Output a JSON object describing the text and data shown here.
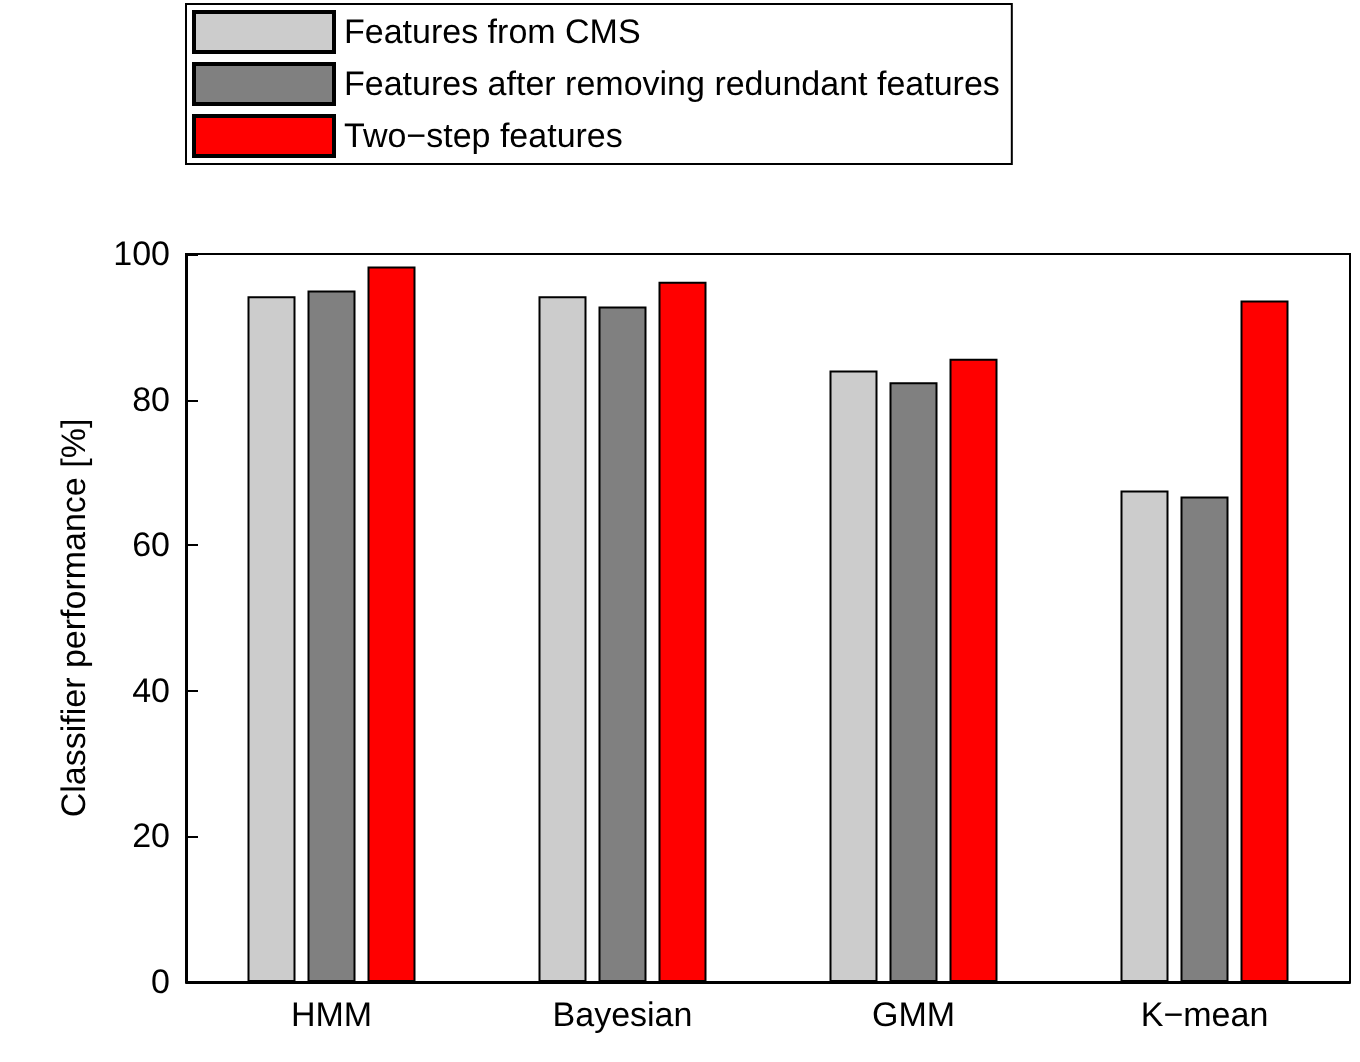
{
  "chart_data": {
    "type": "bar",
    "ylabel": "Classifier performance [%]",
    "categories": [
      "HMM",
      "Bayesian",
      "GMM",
      "K−mean"
    ],
    "series": [
      {
        "name": "Features from CMS",
        "color": "#cccccc",
        "values": [
          94.2,
          94.2,
          84,
          67.5
        ]
      },
      {
        "name": "Features after removing redundant features",
        "color": "#808080",
        "values": [
          95,
          92.8,
          82.4,
          66.7
        ]
      },
      {
        "name": "Two−step features",
        "color": "#ff0000",
        "values": [
          98.3,
          96.2,
          85.6,
          93.6
        ]
      }
    ],
    "ylim": [
      0,
      100
    ],
    "yticks": [
      0,
      20,
      40,
      60,
      80,
      100
    ],
    "grid": false,
    "legend": "top"
  }
}
